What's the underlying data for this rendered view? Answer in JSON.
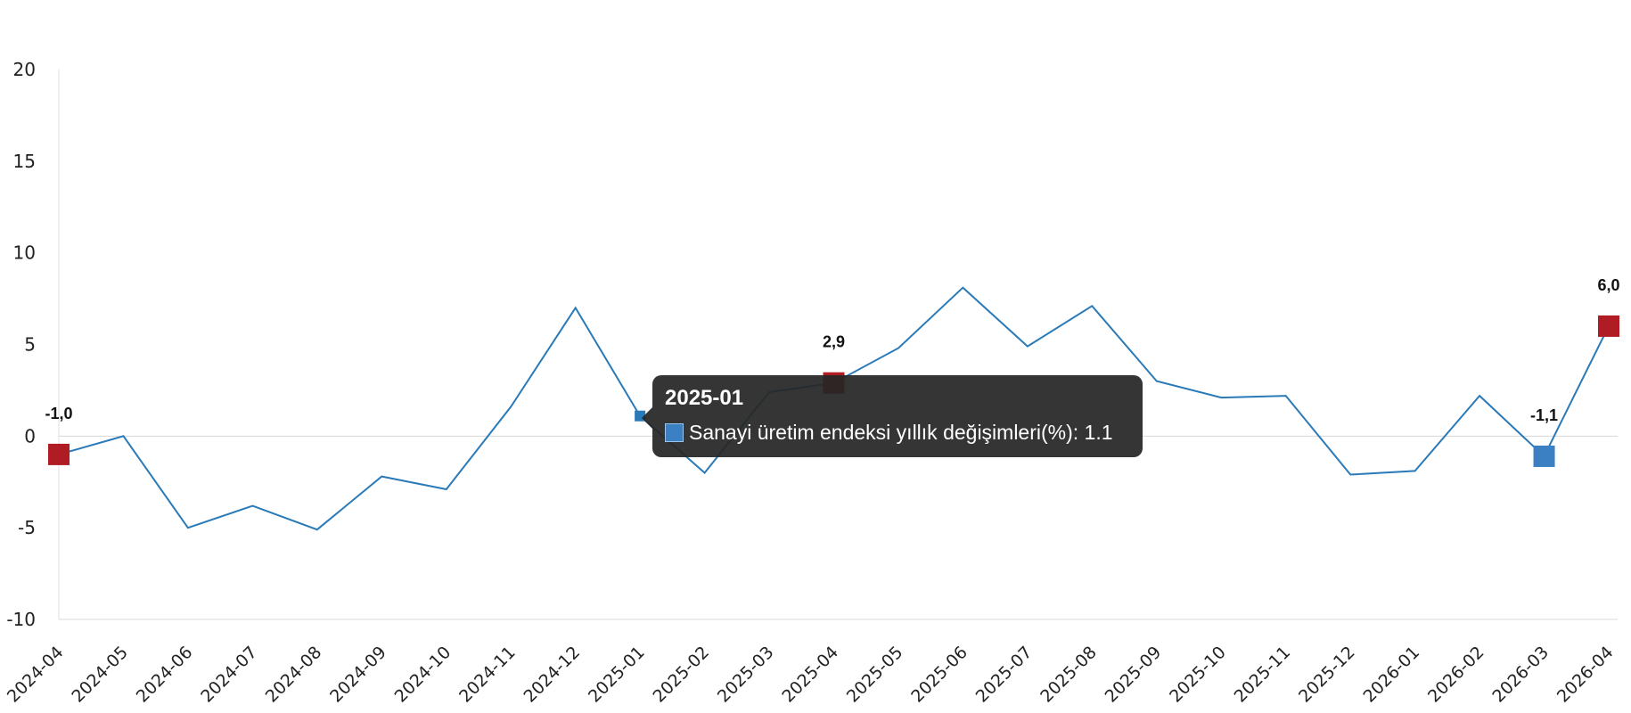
{
  "chart_data": {
    "type": "line",
    "x": [
      "2024-04",
      "2024-05",
      "2024-06",
      "2024-07",
      "2024-08",
      "2024-09",
      "2024-10",
      "2024-11",
      "2024-12",
      "2025-01",
      "2025-02",
      "2025-03",
      "2025-04",
      "2025-05",
      "2025-06",
      "2025-07",
      "2025-08",
      "2025-09",
      "2025-10",
      "2025-11",
      "2025-12",
      "2026-01",
      "2026-02",
      "2026-03",
      "2026-04"
    ],
    "series": [
      {
        "name": "Sanayi üretim endeksi yıllık değişimleri(%)",
        "values": [
          -1.0,
          0.0,
          -5.0,
          -3.8,
          -5.1,
          -2.2,
          -2.9,
          1.6,
          7.0,
          1.1,
          -2.0,
          2.4,
          2.9,
          4.8,
          8.1,
          4.9,
          7.1,
          3.0,
          2.1,
          2.2,
          -2.1,
          -1.9,
          2.2,
          -1.1,
          6.0
        ],
        "color": "#2a7ab8"
      }
    ],
    "yticks": [
      "20",
      "15",
      "10",
      "5",
      "0",
      "-5",
      "-10"
    ],
    "ylim": [
      -10,
      20
    ],
    "highlights": [
      {
        "index": 0,
        "label": "-1,0",
        "color": "#b01c24"
      },
      {
        "index": 12,
        "label": "2,9",
        "color": "#b01c24"
      },
      {
        "index": 23,
        "label": "-1,1",
        "color": "#3a80c2"
      },
      {
        "index": 24,
        "label": "6,0",
        "color": "#b01c24"
      }
    ],
    "tooltip": {
      "title": "2025-01",
      "text": "Sanayi üretim endeksi yıllık değişimleri(%): 1.1",
      "index": 9
    },
    "grid": false,
    "legend": "none"
  }
}
